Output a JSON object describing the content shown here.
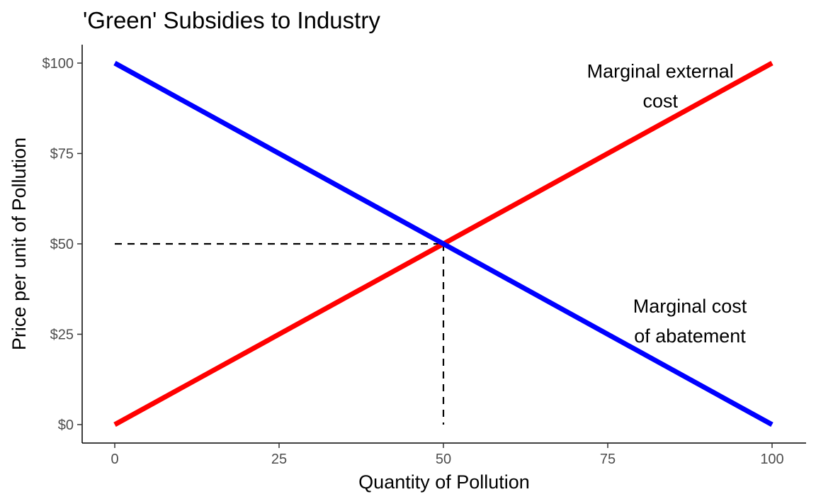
{
  "chart_data": {
    "type": "line",
    "title": "'Green' Subsidies to Industry",
    "xlabel": "Quantity of Pollution",
    "ylabel": "Price per unit of Pollution",
    "xlim": [
      0,
      100
    ],
    "ylim": [
      0,
      100
    ],
    "x_ticks": [
      0,
      25,
      50,
      75,
      100
    ],
    "x_tick_labels": [
      "0",
      "25",
      "50",
      "75",
      "100"
    ],
    "y_ticks": [
      0,
      25,
      50,
      75,
      100
    ],
    "y_tick_labels": [
      "$0",
      "$25",
      "$50",
      "$75",
      "$100"
    ],
    "grid": false,
    "series": [
      {
        "name": "Marginal external cost",
        "color": "#ff0000",
        "x": [
          0,
          100
        ],
        "y": [
          0,
          100
        ]
      },
      {
        "name": "Marginal cost of abatement",
        "color": "#0000ff",
        "x": [
          0,
          100
        ],
        "y": [
          100,
          0
        ]
      }
    ],
    "reference_lines": [
      {
        "style": "dashed",
        "color": "#000000",
        "x": [
          0,
          50
        ],
        "y": [
          50,
          50
        ]
      },
      {
        "style": "dashed",
        "color": "#000000",
        "x": [
          50,
          50
        ],
        "y": [
          50,
          0
        ]
      }
    ],
    "annotations": [
      {
        "lines": [
          "Marginal external",
          "cost"
        ],
        "x": 83,
        "y": 96
      },
      {
        "lines": [
          "Marginal cost",
          "of abatement"
        ],
        "x": 87.5,
        "y": 31
      }
    ]
  }
}
